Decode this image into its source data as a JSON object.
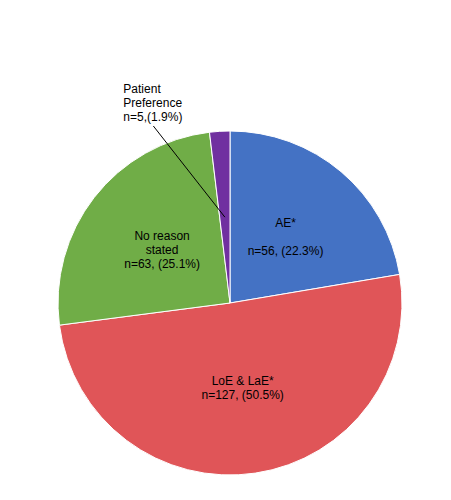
{
  "chart_data": {
    "type": "pie",
    "categories": [
      "AE*\n\nn=56, (22.3%)",
      "LoE & LaE*\nn=127, (50.5%)",
      "No reason\nstated\nn=63, (25.1%)",
      "Patient\nPreference\nn=5,(1.9%)"
    ],
    "values": [
      22.3,
      50.5,
      25.1,
      1.9
    ],
    "colors": [
      "#4472C4",
      "#E05558",
      "#70AD47",
      "#7030A0"
    ]
  }
}
